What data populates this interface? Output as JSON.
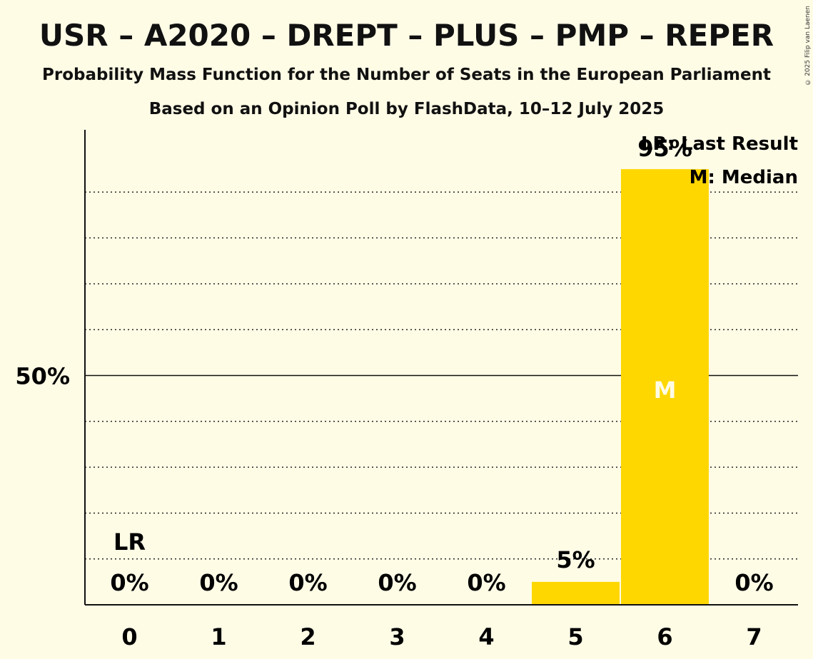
{
  "header": {
    "title": "USR – A2020 – DREPT – PLUS – PMP – REPER",
    "subtitle": "Probability Mass Function for the Number of Seats in the European Parliament",
    "subtitle2": "Based on an Opinion Poll by FlashData, 10–12 July 2025",
    "copyright": "© 2025 Filip van Laenen"
  },
  "chart_data": {
    "type": "bar",
    "categories": [
      "0",
      "1",
      "2",
      "3",
      "4",
      "5",
      "6",
      "7"
    ],
    "values": [
      0,
      0,
      0,
      0,
      0,
      5,
      95,
      0
    ],
    "value_labels": [
      "0%",
      "0%",
      "0%",
      "0%",
      "0%",
      "5%",
      "95%",
      "0%"
    ],
    "ylim": [
      0,
      100
    ],
    "y_tick_label": "50%",
    "y_tick_value": 50,
    "gridlines": [
      10,
      20,
      30,
      40,
      60,
      70,
      80,
      90
    ],
    "last_result_index": 0,
    "last_result_marker": "LR",
    "median_index": 6,
    "median_marker": "M",
    "legend": {
      "position": "top-right",
      "items": [
        "LR: Last Result",
        "M: Median"
      ]
    },
    "colors": {
      "bar": "#FFD700",
      "background": "#FFFCE6",
      "median_text": "#FFFCE6"
    }
  }
}
